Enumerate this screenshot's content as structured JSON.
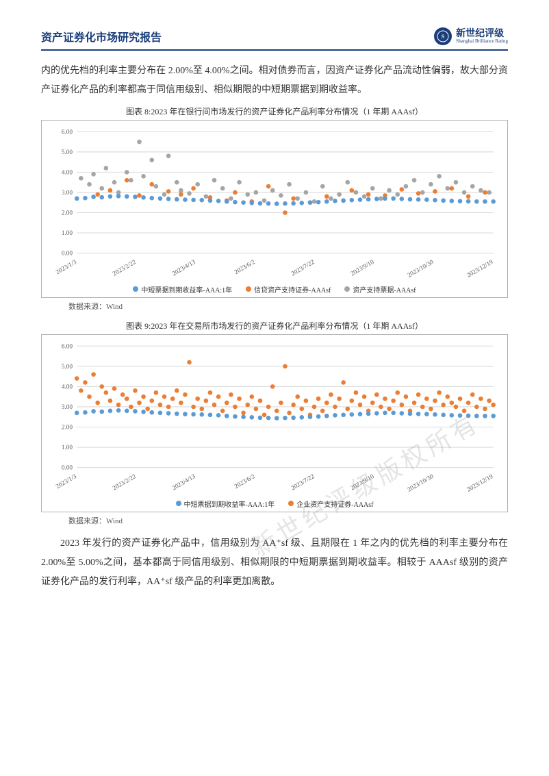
{
  "header": {
    "title": "资产证券化市场研究报告",
    "brand_cn": "新世纪评级",
    "brand_en": "Shanghai Brilliance Rating",
    "brand_color": "#1a3e7a"
  },
  "para1": "内的优先档的利率主要分布在 2.00%至 4.00%之间。相对债券而言，因资产证券化产品流动性偏弱，故大部分资产证券化产品的利率都高于同信用级别、相似期限的中短期票据到期收益率。",
  "chart8": {
    "type": "scatter",
    "title": "图表 8:2023 年在银行间市场发行的资产证券化产品利率分布情况（1 年期 AAAsf）",
    "xlabels": [
      "2023/1/3",
      "2023/2/22",
      "2023/4/13",
      "2023/6/2",
      "2023/7/22",
      "2023/9/10",
      "2023/10/30",
      "2023/12/19"
    ],
    "ylim": [
      0,
      6
    ],
    "ytick_step": 1,
    "tick_fontsize": 9,
    "grid_color": "#d9d9d9",
    "background_color": "#ffffff",
    "xlabel_rotate": -30,
    "marker_size": 3.2,
    "series": [
      {
        "name": "中短票据到期收益率-AAA:1年",
        "color": "#5b9bd5",
        "data": [
          [
            0,
            2.7
          ],
          [
            2,
            2.72
          ],
          [
            4,
            2.78
          ],
          [
            6,
            2.76
          ],
          [
            8,
            2.8
          ],
          [
            10,
            2.82
          ],
          [
            12,
            2.8
          ],
          [
            14,
            2.78
          ],
          [
            16,
            2.75
          ],
          [
            18,
            2.72
          ],
          [
            20,
            2.7
          ],
          [
            22,
            2.68
          ],
          [
            24,
            2.66
          ],
          [
            26,
            2.64
          ],
          [
            28,
            2.63
          ],
          [
            30,
            2.62
          ],
          [
            32,
            2.6
          ],
          [
            34,
            2.58
          ],
          [
            36,
            2.55
          ],
          [
            38,
            2.52
          ],
          [
            40,
            2.5
          ],
          [
            42,
            2.48
          ],
          [
            44,
            2.46
          ],
          [
            46,
            2.45
          ],
          [
            48,
            2.44
          ],
          [
            50,
            2.45
          ],
          [
            52,
            2.46
          ],
          [
            54,
            2.48
          ],
          [
            56,
            2.5
          ],
          [
            58,
            2.52
          ],
          [
            60,
            2.55
          ],
          [
            62,
            2.58
          ],
          [
            64,
            2.6
          ],
          [
            66,
            2.62
          ],
          [
            68,
            2.64
          ],
          [
            70,
            2.66
          ],
          [
            72,
            2.68
          ],
          [
            74,
            2.7
          ],
          [
            76,
            2.7
          ],
          [
            78,
            2.68
          ],
          [
            80,
            2.66
          ],
          [
            82,
            2.65
          ],
          [
            84,
            2.64
          ],
          [
            86,
            2.62
          ],
          [
            88,
            2.6
          ],
          [
            90,
            2.58
          ],
          [
            92,
            2.57
          ],
          [
            94,
            2.56
          ],
          [
            96,
            2.55
          ],
          [
            98,
            2.55
          ],
          [
            100,
            2.55
          ]
        ]
      },
      {
        "name": "信贷资产支持证券-AAAsf",
        "color": "#ed7d31",
        "data": [
          [
            5,
            2.9
          ],
          [
            8,
            3.1
          ],
          [
            12,
            3.6
          ],
          [
            15,
            2.85
          ],
          [
            18,
            3.4
          ],
          [
            22,
            3.05
          ],
          [
            25,
            2.9
          ],
          [
            28,
            3.2
          ],
          [
            32,
            2.75
          ],
          [
            36,
            2.6
          ],
          [
            38,
            3.0
          ],
          [
            42,
            2.55
          ],
          [
            46,
            3.3
          ],
          [
            50,
            2.0
          ],
          [
            52,
            2.7
          ],
          [
            56,
            2.5
          ],
          [
            60,
            2.8
          ],
          [
            64,
            2.6
          ],
          [
            66,
            3.1
          ],
          [
            70,
            2.9
          ],
          [
            74,
            2.85
          ],
          [
            78,
            3.15
          ],
          [
            82,
            2.95
          ],
          [
            86,
            3.05
          ],
          [
            90,
            3.2
          ],
          [
            94,
            2.8
          ],
          [
            98,
            3.0
          ]
        ]
      },
      {
        "name": "资产支持票据-AAAsf",
        "color": "#a5a5a5",
        "data": [
          [
            1,
            3.7
          ],
          [
            3,
            3.4
          ],
          [
            4,
            3.9
          ],
          [
            6,
            3.2
          ],
          [
            7,
            4.2
          ],
          [
            9,
            3.5
          ],
          [
            10,
            3.0
          ],
          [
            12,
            4.0
          ],
          [
            13,
            3.6
          ],
          [
            15,
            5.5
          ],
          [
            16,
            3.8
          ],
          [
            18,
            4.6
          ],
          [
            19,
            3.3
          ],
          [
            21,
            2.9
          ],
          [
            22,
            4.8
          ],
          [
            24,
            3.5
          ],
          [
            25,
            3.1
          ],
          [
            27,
            2.95
          ],
          [
            29,
            3.4
          ],
          [
            31,
            2.8
          ],
          [
            33,
            3.6
          ],
          [
            35,
            3.2
          ],
          [
            37,
            2.7
          ],
          [
            39,
            3.5
          ],
          [
            41,
            2.9
          ],
          [
            43,
            3.0
          ],
          [
            45,
            2.6
          ],
          [
            47,
            3.1
          ],
          [
            49,
            2.85
          ],
          [
            51,
            3.4
          ],
          [
            53,
            2.7
          ],
          [
            55,
            3.0
          ],
          [
            57,
            2.55
          ],
          [
            59,
            3.3
          ],
          [
            61,
            2.7
          ],
          [
            63,
            2.9
          ],
          [
            65,
            3.5
          ],
          [
            67,
            3.0
          ],
          [
            69,
            2.8
          ],
          [
            71,
            3.2
          ],
          [
            73,
            2.7
          ],
          [
            75,
            3.1
          ],
          [
            77,
            2.9
          ],
          [
            79,
            3.3
          ],
          [
            81,
            3.6
          ],
          [
            83,
            3.0
          ],
          [
            85,
            3.4
          ],
          [
            87,
            3.8
          ],
          [
            89,
            3.2
          ],
          [
            91,
            3.5
          ],
          [
            93,
            3.0
          ],
          [
            95,
            3.3
          ],
          [
            97,
            3.1
          ],
          [
            99,
            3.0
          ]
        ]
      }
    ]
  },
  "source8": "数据来源：Wind",
  "chart9": {
    "type": "scatter",
    "title": "图表 9:2023 年在交易所市场发行的资产证券化产品利率分布情况（1 年期 AAAsf）",
    "xlabels": [
      "2023/1/3",
      "2023/2/22",
      "2023/4/13",
      "2023/6/2",
      "2023/7/22",
      "2023/9/10",
      "2023/10/30",
      "2023/12/19"
    ],
    "ylim": [
      0,
      6
    ],
    "ytick_step": 1,
    "tick_fontsize": 9,
    "grid_color": "#d9d9d9",
    "background_color": "#ffffff",
    "xlabel_rotate": -30,
    "marker_size": 3.2,
    "series": [
      {
        "name": "中短票据到期收益率-AAA:1年",
        "color": "#5b9bd5",
        "data": [
          [
            0,
            2.7
          ],
          [
            2,
            2.72
          ],
          [
            4,
            2.78
          ],
          [
            6,
            2.76
          ],
          [
            8,
            2.8
          ],
          [
            10,
            2.82
          ],
          [
            12,
            2.8
          ],
          [
            14,
            2.78
          ],
          [
            16,
            2.75
          ],
          [
            18,
            2.72
          ],
          [
            20,
            2.7
          ],
          [
            22,
            2.68
          ],
          [
            24,
            2.66
          ],
          [
            26,
            2.64
          ],
          [
            28,
            2.63
          ],
          [
            30,
            2.62
          ],
          [
            32,
            2.6
          ],
          [
            34,
            2.58
          ],
          [
            36,
            2.55
          ],
          [
            38,
            2.52
          ],
          [
            40,
            2.5
          ],
          [
            42,
            2.48
          ],
          [
            44,
            2.46
          ],
          [
            46,
            2.45
          ],
          [
            48,
            2.44
          ],
          [
            50,
            2.45
          ],
          [
            52,
            2.46
          ],
          [
            54,
            2.48
          ],
          [
            56,
            2.5
          ],
          [
            58,
            2.52
          ],
          [
            60,
            2.55
          ],
          [
            62,
            2.58
          ],
          [
            64,
            2.6
          ],
          [
            66,
            2.62
          ],
          [
            68,
            2.64
          ],
          [
            70,
            2.66
          ],
          [
            72,
            2.68
          ],
          [
            74,
            2.7
          ],
          [
            76,
            2.7
          ],
          [
            78,
            2.68
          ],
          [
            80,
            2.66
          ],
          [
            82,
            2.65
          ],
          [
            84,
            2.64
          ],
          [
            86,
            2.62
          ],
          [
            88,
            2.6
          ],
          [
            90,
            2.58
          ],
          [
            92,
            2.57
          ],
          [
            94,
            2.56
          ],
          [
            96,
            2.55
          ],
          [
            98,
            2.55
          ],
          [
            100,
            2.55
          ]
        ]
      },
      {
        "name": "企业资产支持证券-AAAsf",
        "color": "#ed7d31",
        "data": [
          [
            0,
            4.4
          ],
          [
            1,
            3.8
          ],
          [
            2,
            4.2
          ],
          [
            3,
            3.5
          ],
          [
            4,
            4.6
          ],
          [
            5,
            3.2
          ],
          [
            6,
            4.0
          ],
          [
            7,
            3.7
          ],
          [
            8,
            3.3
          ],
          [
            9,
            3.9
          ],
          [
            10,
            3.1
          ],
          [
            11,
            3.6
          ],
          [
            12,
            3.4
          ],
          [
            13,
            3.0
          ],
          [
            14,
            3.8
          ],
          [
            15,
            3.2
          ],
          [
            16,
            3.5
          ],
          [
            17,
            2.9
          ],
          [
            18,
            3.3
          ],
          [
            19,
            3.7
          ],
          [
            20,
            3.1
          ],
          [
            21,
            3.5
          ],
          [
            22,
            3.0
          ],
          [
            23,
            3.4
          ],
          [
            24,
            3.8
          ],
          [
            25,
            3.2
          ],
          [
            26,
            3.6
          ],
          [
            27,
            5.2
          ],
          [
            28,
            3.0
          ],
          [
            29,
            3.4
          ],
          [
            30,
            2.9
          ],
          [
            31,
            3.3
          ],
          [
            32,
            3.7
          ],
          [
            33,
            3.1
          ],
          [
            34,
            3.5
          ],
          [
            35,
            2.8
          ],
          [
            36,
            3.2
          ],
          [
            37,
            3.6
          ],
          [
            38,
            3.0
          ],
          [
            39,
            3.4
          ],
          [
            40,
            2.7
          ],
          [
            41,
            3.1
          ],
          [
            42,
            3.5
          ],
          [
            43,
            2.9
          ],
          [
            44,
            3.3
          ],
          [
            45,
            2.6
          ],
          [
            46,
            3.0
          ],
          [
            47,
            4.0
          ],
          [
            48,
            2.8
          ],
          [
            49,
            3.2
          ],
          [
            50,
            5.0
          ],
          [
            51,
            2.7
          ],
          [
            52,
            3.1
          ],
          [
            53,
            3.5
          ],
          [
            54,
            2.9
          ],
          [
            55,
            3.3
          ],
          [
            56,
            2.6
          ],
          [
            57,
            3.0
          ],
          [
            58,
            3.4
          ],
          [
            59,
            2.8
          ],
          [
            60,
            3.2
          ],
          [
            61,
            3.6
          ],
          [
            62,
            3.0
          ],
          [
            63,
            3.4
          ],
          [
            64,
            4.2
          ],
          [
            65,
            2.9
          ],
          [
            66,
            3.3
          ],
          [
            67,
            3.7
          ],
          [
            68,
            3.1
          ],
          [
            69,
            3.5
          ],
          [
            70,
            2.8
          ],
          [
            71,
            3.2
          ],
          [
            72,
            3.6
          ],
          [
            73,
            3.0
          ],
          [
            74,
            3.4
          ],
          [
            75,
            2.9
          ],
          [
            76,
            3.3
          ],
          [
            77,
            3.7
          ],
          [
            78,
            3.1
          ],
          [
            79,
            3.5
          ],
          [
            80,
            2.8
          ],
          [
            81,
            3.2
          ],
          [
            82,
            3.6
          ],
          [
            83,
            3.0
          ],
          [
            84,
            3.4
          ],
          [
            85,
            2.9
          ],
          [
            86,
            3.3
          ],
          [
            87,
            3.7
          ],
          [
            88,
            3.1
          ],
          [
            89,
            3.5
          ],
          [
            90,
            3.2
          ],
          [
            91,
            3.0
          ],
          [
            92,
            3.4
          ],
          [
            93,
            2.8
          ],
          [
            94,
            3.2
          ],
          [
            95,
            3.6
          ],
          [
            96,
            3.0
          ],
          [
            97,
            3.4
          ],
          [
            98,
            2.9
          ],
          [
            99,
            3.3
          ],
          [
            100,
            3.1
          ]
        ]
      }
    ]
  },
  "source9": "数据来源：Wind",
  "para2": "2023 年发行的资产证券化产品中，信用级别为 AA⁺sf 级、且期限在 1 年之内的优先档的利率主要分布在 2.00%至 5.00%之间，基本都高于同信用级别、相似期限的中短期票据到期收益率。相较于 AAAsf 级别的资产证券化产品的发行利率，AA⁺sf 级产品的利率更加离散。",
  "watermark": "新世纪评级版权所有"
}
